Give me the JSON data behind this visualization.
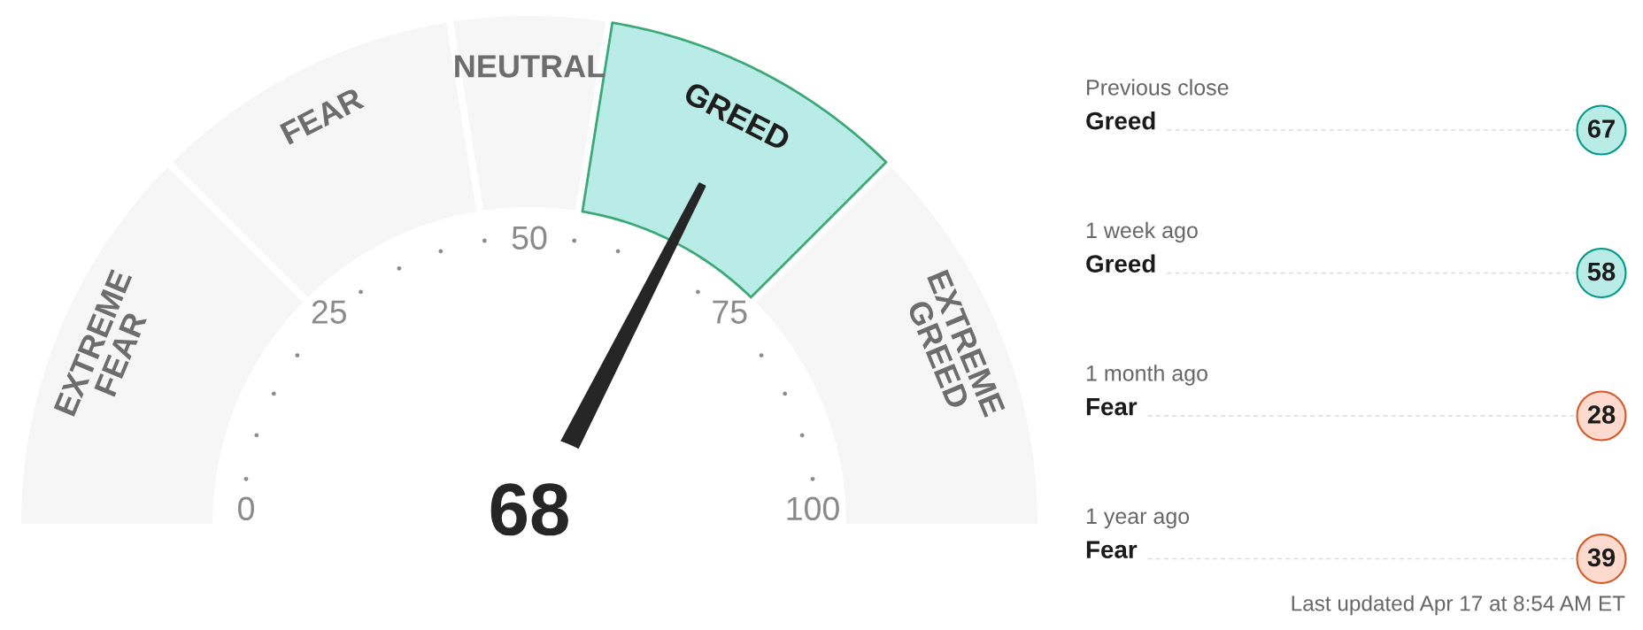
{
  "chart_data": [
    {
      "type": "donut",
      "categories": [
        "EXTREME\nFEAR",
        "FEAR",
        "NEUTRAL",
        "GREED",
        "EXTREME\nGREED"
      ],
      "values": [
        25,
        20,
        10,
        20,
        25
      ],
      "colors": [
        "#f6f6f6",
        "#f6f6f6",
        "#f6f6f6",
        "#b9ece7",
        "#f6f6f6"
      ],
      "needle": "GREED",
      "annotations": [
        "0",
        "25",
        "50",
        "75",
        "100",
        "68"
      ]
    },
    {
      "type": "other",
      "categories": [
        "Previous close",
        "1 week ago",
        "1 month ago",
        "1 year ago"
      ],
      "y_categories": [
        "Greed",
        "Greed",
        "Fear",
        "Fear"
      ],
      "values": [
        67,
        58,
        28,
        39
      ],
      "colors": [
        "#b9ece7",
        "#b9ece7",
        "#fcdacd",
        "#fcdacd"
      ],
      "data_labels": true,
      "annotations": [
        "Last updated Apr 17 at 8:54 AM ET"
      ]
    }
  ]
}
